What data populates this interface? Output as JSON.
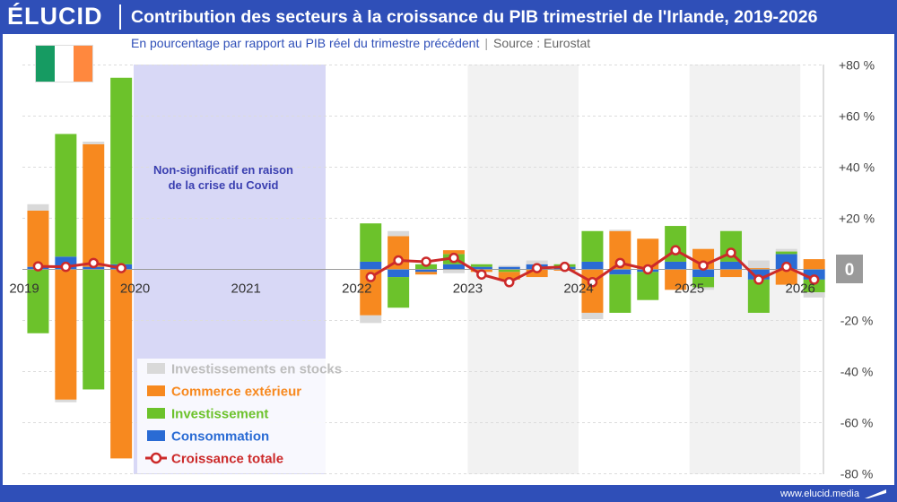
{
  "brand": {
    "logo": "ÉLUCID",
    "url": "www.elucid.media"
  },
  "title": "Contribution des secteurs à la croissance du PIB trimestriel de l'Irlande, 2019-2026",
  "subtitle": "En pourcentage par rapport au PIB réel du trimestre précédent",
  "source": "Source : Eurostat",
  "flag": {
    "colors": [
      "#169b62",
      "#ffffff",
      "#ff883e"
    ]
  },
  "annotation": {
    "lines": [
      "Non-significatif en raison",
      "de la crise du Covid"
    ]
  },
  "zero_badge": "0",
  "colors": {
    "stocks": "#d9d9d9",
    "exterieur": "#f7891f",
    "investissement": "#6cc22b",
    "consommation": "#2a6bd4",
    "croissance": "#cc2a2a",
    "covid_band": "#d8d8f6",
    "alt_band": "#f2f2f2"
  },
  "chart_data": {
    "type": "bar",
    "stacked": true,
    "xlabel": "",
    "ylabel": "",
    "ylim": [
      -80,
      80
    ],
    "yticks": [
      80,
      60,
      40,
      20,
      -20,
      -40,
      -60,
      -80
    ],
    "ytick_labels": [
      "+80 %",
      "+60 %",
      "+40 %",
      "+20 %",
      "-20 %",
      "-40 %",
      "-60 %",
      "-80 %"
    ],
    "year_labels": [
      "2019",
      "2020",
      "2021",
      "2022",
      "2023",
      "2024",
      "2025",
      "2026"
    ],
    "covid_excluded": {
      "from": "2020-T1",
      "to": "2021-T4",
      "label": "Non-significatif en raison de la crise du Covid"
    },
    "categories": [
      "2019-T1",
      "2019-T2",
      "2019-T3",
      "2019-T4",
      "2022-T1",
      "2022-T2",
      "2022-T3",
      "2022-T4",
      "2023-T1",
      "2023-T2",
      "2023-T3",
      "2023-T4",
      "2024-T1",
      "2024-T2",
      "2024-T3",
      "2024-T4",
      "2025-T1",
      "2025-T2",
      "2025-T3",
      "2025-T4",
      "2026-T1"
    ],
    "series": [
      {
        "name": "Investissements en stocks",
        "key": "stocks",
        "values": [
          2.5,
          -1,
          1,
          0,
          -3,
          2,
          0,
          -1.5,
          0,
          0.5,
          1.5,
          0,
          -2.5,
          0.5,
          0,
          0,
          -1,
          0,
          3,
          1,
          -2
        ]
      },
      {
        "name": "Commerce extérieur",
        "key": "exterieur",
        "values": [
          22,
          -51,
          48,
          -74,
          -18,
          13,
          -1,
          1.5,
          -1,
          -3,
          -3,
          -0.5,
          -17,
          15,
          12,
          -8,
          8,
          -3,
          0.5,
          -6,
          4
        ]
      },
      {
        "name": "Investissement",
        "key": "investissement",
        "values": [
          -25,
          48,
          -47,
          73,
          15,
          -12,
          2,
          4,
          1,
          -1,
          0,
          1,
          12,
          -15,
          -11,
          14,
          -4,
          12,
          -13,
          1,
          -5
        ]
      },
      {
        "name": "Consommation",
        "key": "consommation",
        "values": [
          1,
          5,
          1,
          2,
          3,
          -3,
          -1,
          2,
          1,
          1,
          2,
          1,
          3,
          -2,
          -1,
          3,
          -3,
          3,
          -4,
          6,
          -4
        ]
      }
    ],
    "line": {
      "name": "Croissance totale",
      "key": "croissance",
      "values": [
        1.2,
        1.0,
        2.5,
        0.5,
        -3.0,
        3.5,
        3.0,
        4.5,
        -2.0,
        -5.0,
        0.5,
        1.0,
        -5.0,
        2.5,
        0.0,
        7.5,
        1.5,
        6.5,
        -4.0,
        1.0,
        -4.0
      ]
    },
    "legend_position": "bottom-left"
  }
}
